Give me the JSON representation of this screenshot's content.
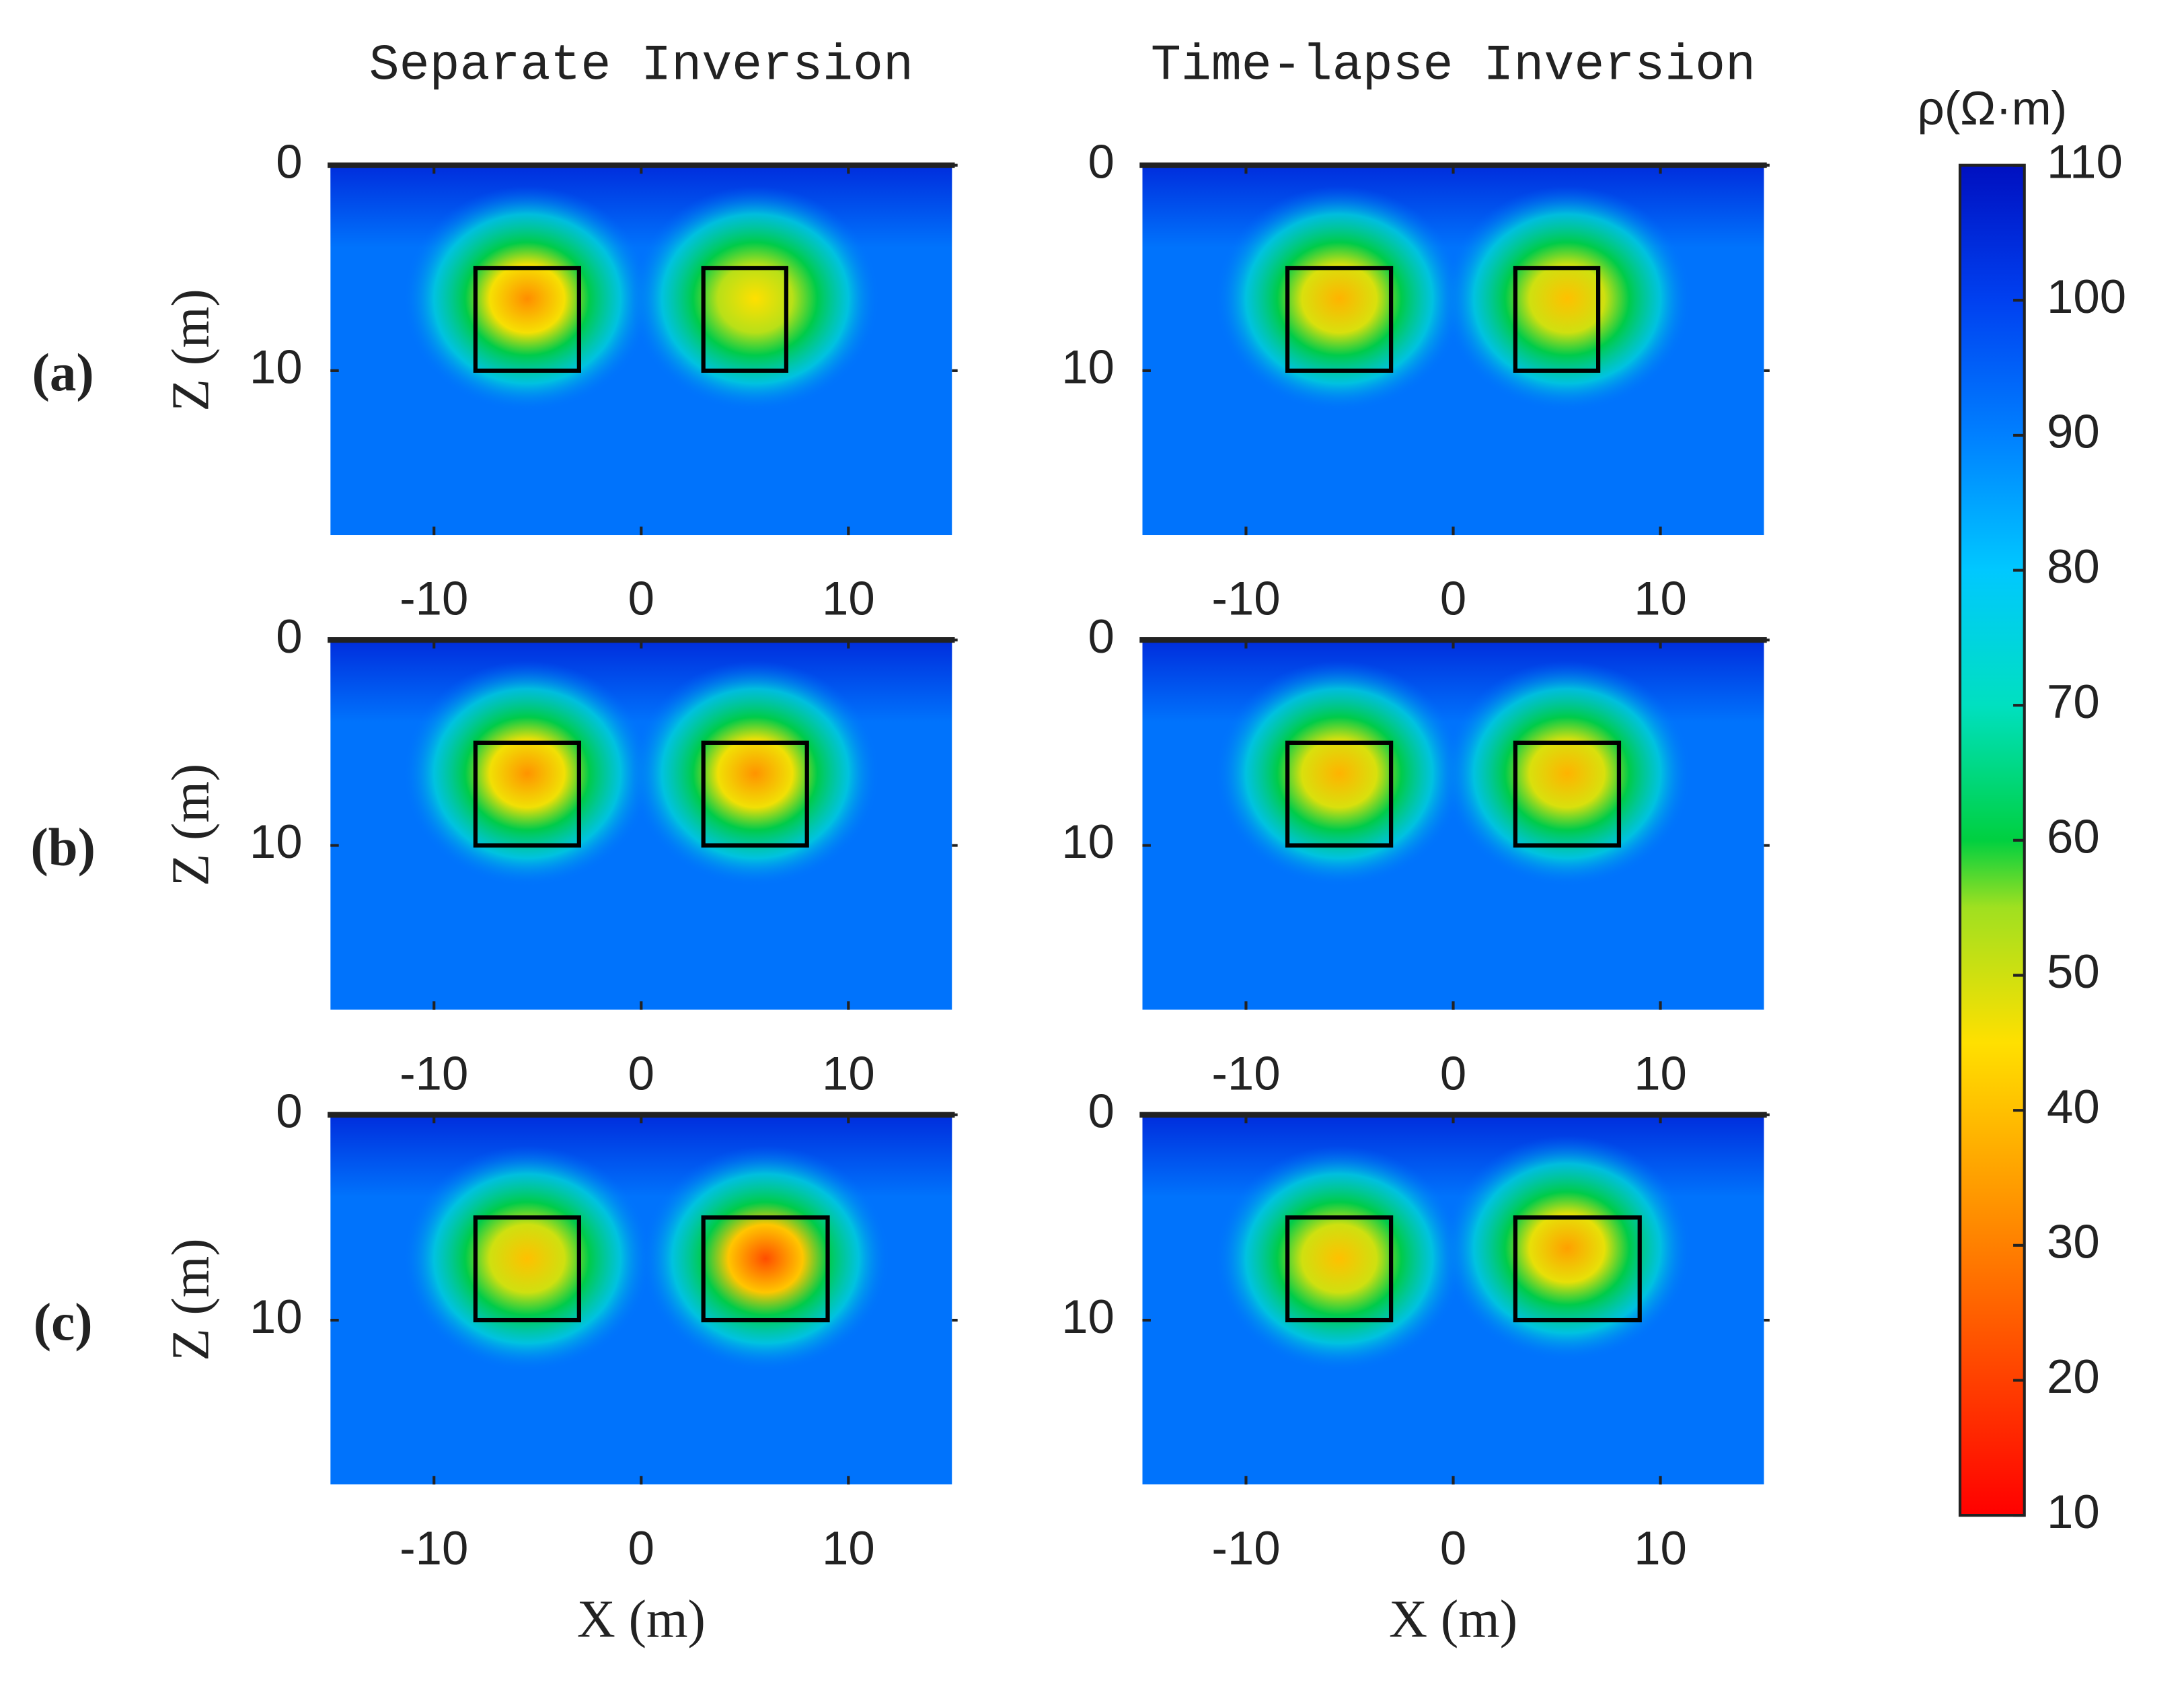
{
  "chart_data": [
    {
      "type": "heatmap",
      "title": "Separate Inversion",
      "panel_label": "(a)",
      "ylabel": "Z (m)",
      "xlim": [
        -15,
        15
      ],
      "ylim": [
        18,
        0
      ],
      "xticks": [
        -10,
        0,
        10
      ],
      "yticks": [
        0,
        10
      ],
      "background": 92,
      "surface": 104,
      "blobs": [
        {
          "x": -5.5,
          "z": 6.5,
          "value": 32
        },
        {
          "x": 5.5,
          "z": 6.5,
          "value": 45
        }
      ],
      "boxes": [
        {
          "x": [
            -8,
            -3
          ],
          "z": [
            5,
            10
          ]
        },
        {
          "x": [
            3,
            7
          ],
          "z": [
            5,
            10
          ]
        }
      ]
    },
    {
      "type": "heatmap",
      "title": "Time-lapse Inversion",
      "xlim": [
        -15,
        15
      ],
      "ylim": [
        18,
        0
      ],
      "xticks": [
        -10,
        0,
        10
      ],
      "yticks": [
        0,
        10
      ],
      "background": 92,
      "surface": 104,
      "blobs": [
        {
          "x": -5.5,
          "z": 6.5,
          "value": 38
        },
        {
          "x": 5.5,
          "z": 6.5,
          "value": 40
        }
      ],
      "boxes": [
        {
          "x": [
            -8,
            -3
          ],
          "z": [
            5,
            10
          ]
        },
        {
          "x": [
            3,
            7
          ],
          "z": [
            5,
            10
          ]
        }
      ]
    },
    {
      "type": "heatmap",
      "panel_label": "(b)",
      "ylabel": "Z (m)",
      "xlim": [
        -15,
        15
      ],
      "ylim": [
        18,
        0
      ],
      "xticks": [
        -10,
        0,
        10
      ],
      "yticks": [
        0,
        10
      ],
      "background": 92,
      "surface": 104,
      "blobs": [
        {
          "x": -5.5,
          "z": 6.5,
          "value": 33
        },
        {
          "x": 5.5,
          "z": 6.5,
          "value": 33
        }
      ],
      "boxes": [
        {
          "x": [
            -8,
            -3
          ],
          "z": [
            5,
            10
          ]
        },
        {
          "x": [
            3,
            8
          ],
          "z": [
            5,
            10
          ]
        }
      ]
    },
    {
      "type": "heatmap",
      "xlim": [
        -15,
        15
      ],
      "ylim": [
        18,
        0
      ],
      "xticks": [
        -10,
        0,
        10
      ],
      "yticks": [
        0,
        10
      ],
      "background": 92,
      "surface": 104,
      "blobs": [
        {
          "x": -5.5,
          "z": 6.5,
          "value": 38
        },
        {
          "x": 5.5,
          "z": 6.5,
          "value": 38
        }
      ],
      "boxes": [
        {
          "x": [
            -8,
            -3
          ],
          "z": [
            5,
            10
          ]
        },
        {
          "x": [
            3,
            8
          ],
          "z": [
            5,
            10
          ]
        }
      ]
    },
    {
      "type": "heatmap",
      "panel_label": "(c)",
      "ylabel": "Z (m)",
      "xlabel": "X (m)",
      "xlim": [
        -15,
        15
      ],
      "ylim": [
        18,
        0
      ],
      "xticks": [
        -10,
        0,
        10
      ],
      "yticks": [
        0,
        10
      ],
      "background": 92,
      "surface": 104,
      "blobs": [
        {
          "x": -5.5,
          "z": 7,
          "value": 40
        },
        {
          "x": 6,
          "z": 7,
          "value": 22
        }
      ],
      "boxes": [
        {
          "x": [
            -8,
            -3
          ],
          "z": [
            5,
            10
          ]
        },
        {
          "x": [
            3,
            9
          ],
          "z": [
            5,
            10
          ]
        }
      ]
    },
    {
      "type": "heatmap",
      "xlabel": "X (m)",
      "xlim": [
        -15,
        15
      ],
      "ylim": [
        18,
        0
      ],
      "xticks": [
        -10,
        0,
        10
      ],
      "yticks": [
        0,
        10
      ],
      "background": 92,
      "surface": 104,
      "blobs": [
        {
          "x": -5.5,
          "z": 7,
          "value": 40
        },
        {
          "x": 5.5,
          "z": 6.5,
          "value": 35
        }
      ],
      "boxes": [
        {
          "x": [
            -8,
            -3
          ],
          "z": [
            5,
            10
          ]
        },
        {
          "x": [
            3,
            9
          ],
          "z": [
            5,
            10
          ]
        }
      ]
    },
    {
      "type": "colorbar",
      "title": "ρ(Ω·m)",
      "clim": [
        10,
        110
      ],
      "ticks": [
        10,
        20,
        30,
        40,
        50,
        60,
        70,
        80,
        90,
        100,
        110
      ]
    }
  ]
}
